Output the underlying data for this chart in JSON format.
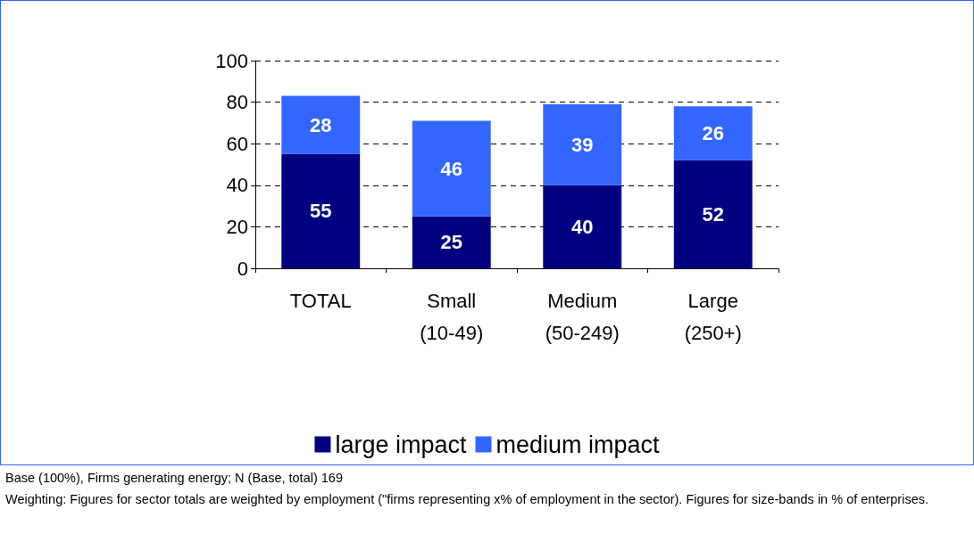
{
  "chart_data": {
    "type": "bar",
    "stacked": true,
    "categories": [
      "TOTAL",
      "Small\n(10-49)",
      "Medium\n(50-249)",
      "Large\n(250+)"
    ],
    "series": [
      {
        "name": "large impact",
        "color": "#000080",
        "values": [
          55,
          25,
          40,
          52
        ]
      },
      {
        "name": "medium impact",
        "color": "#3366ff",
        "values": [
          28,
          46,
          39,
          26
        ]
      }
    ],
    "ylim": [
      0,
      100
    ],
    "yticks": [
      0,
      20,
      40,
      60,
      80,
      100
    ],
    "grid": "y",
    "legend": "bottom",
    "data_labels": true,
    "annotations": [
      "Base (100%), Firms generating energy; N (Base, total)  169",
      "Weighting: Figures for sector totals are weighted by employment (\"firms representing x% of employment in the sector). Figures for size-bands in % of enterprises."
    ]
  }
}
